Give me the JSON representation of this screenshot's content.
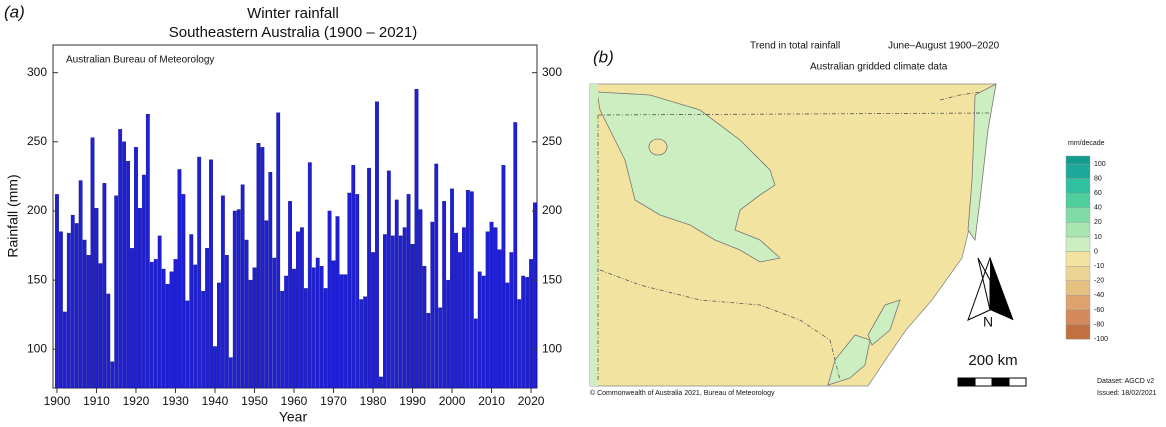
{
  "chart_data": {
    "type": "bar",
    "panel_label": "(a)",
    "title": "Winter rainfall",
    "subtitle": "Southeastern Australia (1900 – 2021)",
    "annotation": "Australian Bureau of Meteorology",
    "xlabel": "Year",
    "ylabel": "Rainfall (mm)",
    "color": "#1f1fd6",
    "grid": false,
    "x": [
      1900,
      1901,
      1902,
      1903,
      1904,
      1905,
      1906,
      1907,
      1908,
      1909,
      1910,
      1911,
      1912,
      1913,
      1914,
      1915,
      1916,
      1917,
      1918,
      1919,
      1920,
      1921,
      1922,
      1923,
      1924,
      1925,
      1926,
      1927,
      1928,
      1929,
      1930,
      1931,
      1932,
      1933,
      1934,
      1935,
      1936,
      1937,
      1938,
      1939,
      1940,
      1941,
      1942,
      1943,
      1944,
      1945,
      1946,
      1947,
      1948,
      1949,
      1950,
      1951,
      1952,
      1953,
      1954,
      1955,
      1956,
      1957,
      1958,
      1959,
      1960,
      1961,
      1962,
      1963,
      1964,
      1965,
      1966,
      1967,
      1968,
      1969,
      1970,
      1971,
      1972,
      1973,
      1974,
      1975,
      1976,
      1977,
      1978,
      1979,
      1980,
      1981,
      1982,
      1983,
      1984,
      1985,
      1986,
      1987,
      1988,
      1989,
      1990,
      1991,
      1992,
      1993,
      1994,
      1995,
      1996,
      1997,
      1998,
      1999,
      2000,
      2001,
      2002,
      2003,
      2004,
      2005,
      2006,
      2007,
      2008,
      2009,
      2010,
      2011,
      2012,
      2013,
      2014,
      2015,
      2016,
      2017,
      2018,
      2019,
      2020,
      2021
    ],
    "values": [
      212,
      185,
      127,
      184,
      197,
      191,
      222,
      179,
      168,
      253,
      202,
      162,
      220,
      140,
      91,
      211,
      259,
      250,
      236,
      173,
      246,
      202,
      226,
      270,
      163,
      165,
      182,
      158,
      147,
      156,
      165,
      230,
      212,
      135,
      183,
      161,
      239,
      142,
      173,
      237,
      102,
      148,
      211,
      168,
      94,
      200,
      201,
      219,
      179,
      150,
      159,
      249,
      246,
      193,
      228,
      166,
      271,
      142,
      153,
      207,
      158,
      185,
      188,
      144,
      235,
      159,
      166,
      160,
      144,
      200,
      164,
      196,
      154,
      154,
      213,
      233,
      212,
      136,
      138,
      231,
      170,
      279,
      80,
      183,
      229,
      182,
      208,
      182,
      188,
      212,
      176,
      288,
      201,
      160,
      126,
      192,
      234,
      130,
      207,
      150,
      216,
      184,
      170,
      188,
      215,
      214,
      122,
      156,
      153,
      185,
      192,
      188,
      172,
      233,
      148,
      170,
      264,
      136,
      153,
      152,
      165,
      206
    ],
    "xlim": [
      1899,
      2021.5
    ],
    "xticks": [
      1900,
      1910,
      1920,
      1930,
      1940,
      1950,
      1960,
      1970,
      1980,
      1990,
      2000,
      2010,
      2020
    ],
    "ylim": [
      72,
      320
    ],
    "yticks": [
      100,
      150,
      200,
      250,
      300
    ]
  },
  "map": {
    "panel_label": "(b)",
    "title": "Trend in total rainfall",
    "period": "June–August 1900–2020",
    "subtitle": "Australian gridded climate data",
    "legend": {
      "title": "mm/decade",
      "labels": [
        "100",
        "80",
        "60",
        "40",
        "20",
        "10",
        "0",
        "-10",
        "-20",
        "-40",
        "-60",
        "-80",
        "-100"
      ],
      "colors": [
        "#1aa99a",
        "#30bf9f",
        "#4fcf9c",
        "#7fdca7",
        "#a8e6b0",
        "#cdeec0",
        "#f2e3a0",
        "#ecd494",
        "#e6c080",
        "#dfa36e",
        "#d48a5a",
        "#c2703f"
      ]
    },
    "north": "N",
    "scale": "200 km",
    "copyright": "© Commonwealth of Australia 2021, Bureau of Meteorology",
    "dataset": "Dataset: AGCD v2",
    "issued": "Issued: 18/02/2021"
  }
}
